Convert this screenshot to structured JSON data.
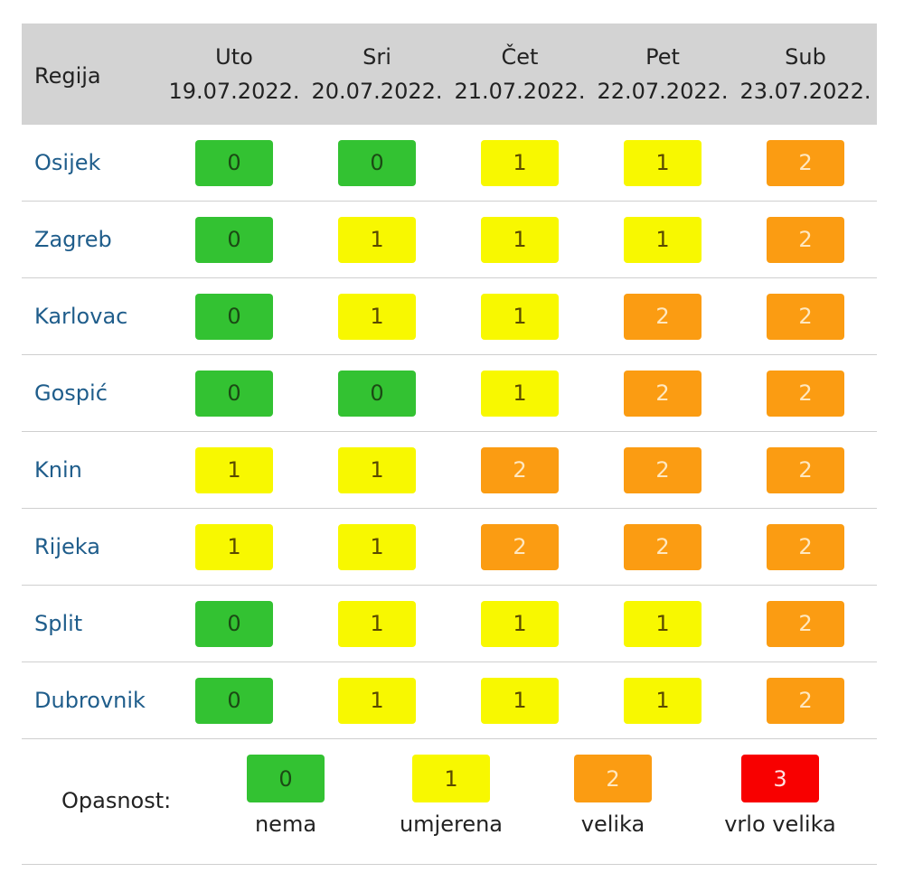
{
  "header": {
    "region_label": "Regija",
    "days": [
      {
        "day": "Uto",
        "date": "19.07.2022."
      },
      {
        "day": "Sri",
        "date": "20.07.2022."
      },
      {
        "day": "Čet",
        "date": "21.07.2022."
      },
      {
        "day": "Pet",
        "date": "22.07.2022."
      },
      {
        "day": "Sub",
        "date": "23.07.2022."
      }
    ]
  },
  "rows": [
    {
      "region": "Osijek",
      "values": [
        "0",
        "0",
        "1",
        "1",
        "2"
      ]
    },
    {
      "region": "Zagreb",
      "values": [
        "0",
        "1",
        "1",
        "1",
        "2"
      ]
    },
    {
      "region": "Karlovac",
      "values": [
        "0",
        "1",
        "1",
        "2",
        "2"
      ]
    },
    {
      "region": "Gospić",
      "values": [
        "0",
        "0",
        "1",
        "2",
        "2"
      ]
    },
    {
      "region": "Knin",
      "values": [
        "1",
        "1",
        "2",
        "2",
        "2"
      ]
    },
    {
      "region": "Rijeka",
      "values": [
        "1",
        "1",
        "2",
        "2",
        "2"
      ]
    },
    {
      "region": "Split",
      "values": [
        "0",
        "1",
        "1",
        "1",
        "2"
      ]
    },
    {
      "region": "Dubrovnik",
      "values": [
        "0",
        "1",
        "1",
        "1",
        "2"
      ]
    }
  ],
  "legend": {
    "label": "Opasnost:",
    "items": [
      {
        "value": "0",
        "text": "nema"
      },
      {
        "value": "1",
        "text": "umjerena"
      },
      {
        "value": "2",
        "text": "velika"
      },
      {
        "value": "3",
        "text": "vrlo velika"
      }
    ]
  },
  "colors": {
    "level_0": "#33c232",
    "level_1": "#f8f800",
    "level_2": "#fb9c12",
    "level_3": "#f80000",
    "header_bg": "#d3d3d3",
    "region_text": "#1f5d8b"
  }
}
